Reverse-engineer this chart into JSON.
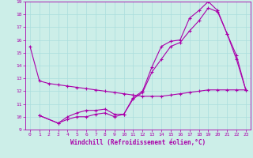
{
  "xlabel": "Windchill (Refroidissement éolien,°C)",
  "bg_color": "#cceee8",
  "line_color": "#aa00aa",
  "grid_color": "#aadddd",
  "xlim": [
    -0.5,
    23.5
  ],
  "ylim": [
    9,
    19
  ],
  "yticks": [
    9,
    10,
    11,
    12,
    13,
    14,
    15,
    16,
    17,
    18,
    19
  ],
  "xticks": [
    0,
    1,
    2,
    3,
    4,
    5,
    6,
    7,
    8,
    9,
    10,
    11,
    12,
    13,
    14,
    15,
    16,
    17,
    18,
    19,
    20,
    21,
    22,
    23
  ],
  "line1_x": [
    0,
    1,
    2,
    3,
    4,
    5,
    6,
    7,
    8,
    9,
    10,
    11,
    12,
    13,
    14,
    15,
    16,
    17,
    18,
    19,
    20,
    21,
    22,
    23
  ],
  "line1_y": [
    15.5,
    12.8,
    12.6,
    12.5,
    12.4,
    12.3,
    12.2,
    12.1,
    12.0,
    11.9,
    11.8,
    11.7,
    11.6,
    11.6,
    11.6,
    11.7,
    11.8,
    11.9,
    12.0,
    12.1,
    12.1,
    12.1,
    12.1,
    12.1
  ],
  "line2_x": [
    1,
    3,
    4,
    5,
    6,
    7,
    8,
    9,
    10,
    11,
    12,
    13,
    14,
    15,
    16,
    17,
    18,
    19,
    20,
    21,
    22,
    23
  ],
  "line2_y": [
    10.1,
    9.5,
    10.0,
    10.3,
    10.5,
    10.5,
    10.6,
    10.2,
    10.2,
    11.5,
    12.0,
    13.9,
    15.5,
    15.9,
    16.0,
    17.7,
    18.3,
    19.0,
    18.3,
    16.5,
    14.8,
    12.1
  ],
  "line3_x": [
    1,
    3,
    4,
    5,
    6,
    7,
    8,
    9,
    10,
    11,
    12,
    13,
    14,
    15,
    16,
    17,
    18,
    19,
    20,
    21,
    22,
    23
  ],
  "line3_y": [
    10.1,
    9.5,
    9.8,
    10.0,
    10.0,
    10.2,
    10.3,
    10.0,
    10.2,
    11.4,
    11.9,
    13.5,
    14.5,
    15.5,
    15.8,
    16.7,
    17.5,
    18.5,
    18.2,
    16.5,
    14.5,
    12.1
  ],
  "marker": "+",
  "markersize": 3,
  "linewidth": 0.8,
  "tick_fontsize": 4.5,
  "xlabel_fontsize": 5.5
}
